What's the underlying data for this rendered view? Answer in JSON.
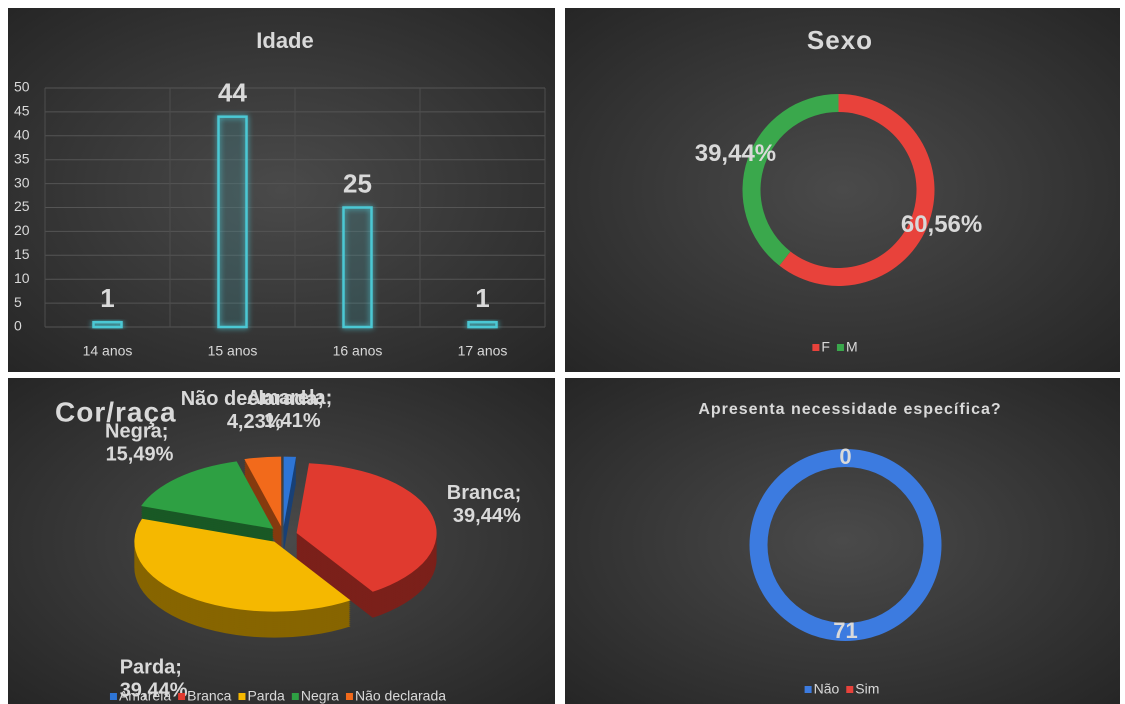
{
  "chart_data": [
    {
      "type": "bar",
      "title": "Idade",
      "categories": [
        "14 anos",
        "15 anos",
        "16 anos",
        "17 anos"
      ],
      "values": [
        1,
        44,
        25,
        1
      ],
      "color": "#4bc8d4",
      "ylim": [
        0,
        50
      ],
      "yticks": [
        0,
        5,
        10,
        15,
        20,
        25,
        30,
        35,
        40,
        45,
        50
      ],
      "grid": true
    },
    {
      "type": "doughnut",
      "title": "Sexo",
      "categories": [
        "F",
        "M"
      ],
      "values": [
        60.56,
        39.44
      ],
      "value_labels": [
        "60,56%",
        "39,44%"
      ],
      "colors": [
        "#e8423b",
        "#3aa84c"
      ],
      "legend": "bottom"
    },
    {
      "type": "pie",
      "title": "Cor/raça",
      "3d": true,
      "categories": [
        "Amarela",
        "Branca",
        "Parda",
        "Negra",
        "Não declarada"
      ],
      "values": [
        1.41,
        39.44,
        39.44,
        15.49,
        4.23
      ],
      "value_labels": [
        "Amarela; 1,41%",
        "Branca; 39,44%",
        "Parda; 39,44%",
        "Negra; 15,49%",
        "Não declarada; 4,23%"
      ],
      "colors": [
        "#2e75d6",
        "#e03a2f",
        "#f5b800",
        "#2ea043",
        "#f26a1b"
      ],
      "legend": "bottom"
    },
    {
      "type": "doughnut",
      "title": "Apresenta necessidade específica?",
      "categories": [
        "Não",
        "Sim"
      ],
      "values": [
        71,
        0
      ],
      "colors": [
        "#3c7be0",
        "#e8423b"
      ],
      "legend": "bottom"
    }
  ]
}
